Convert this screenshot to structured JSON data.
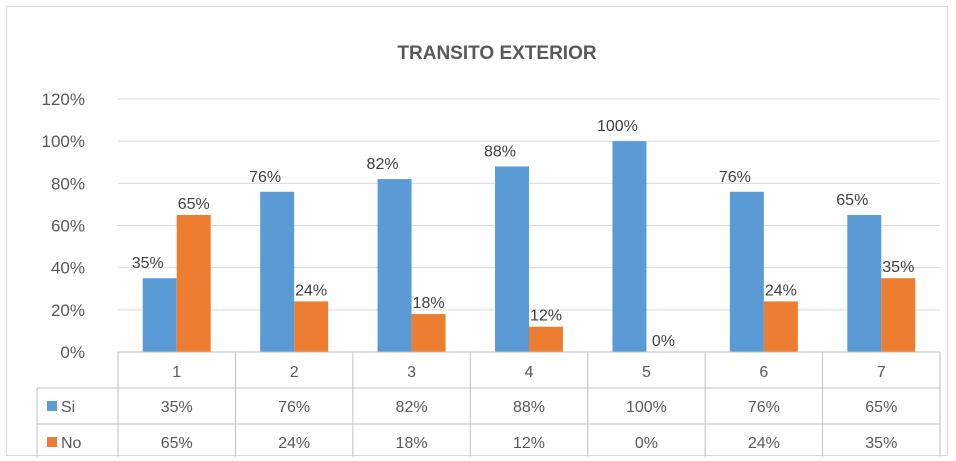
{
  "chart_data": {
    "type": "bar",
    "title": "TRANSITO EXTERIOR",
    "categories": [
      "1",
      "2",
      "3",
      "4",
      "5",
      "6",
      "7"
    ],
    "series": [
      {
        "name": "Si",
        "color": "#5b9bd5",
        "values": [
          35,
          76,
          82,
          88,
          100,
          76,
          65
        ],
        "labels": [
          "35%",
          "76%",
          "82%",
          "88%",
          "100%",
          "76%",
          "65%"
        ]
      },
      {
        "name": "No",
        "color": "#ed7d31",
        "values": [
          65,
          24,
          18,
          12,
          0,
          24,
          35
        ],
        "labels": [
          "65%",
          "24%",
          "18%",
          "12%",
          "0%",
          "24%",
          "35%"
        ]
      }
    ],
    "ylim": [
      0,
      120
    ],
    "yticks": [
      0,
      20,
      40,
      60,
      80,
      100,
      120
    ],
    "ytick_labels": [
      "0%",
      "20%",
      "40%",
      "60%",
      "80%",
      "100%",
      "120%"
    ],
    "grid": true,
    "legend": "data-table"
  }
}
